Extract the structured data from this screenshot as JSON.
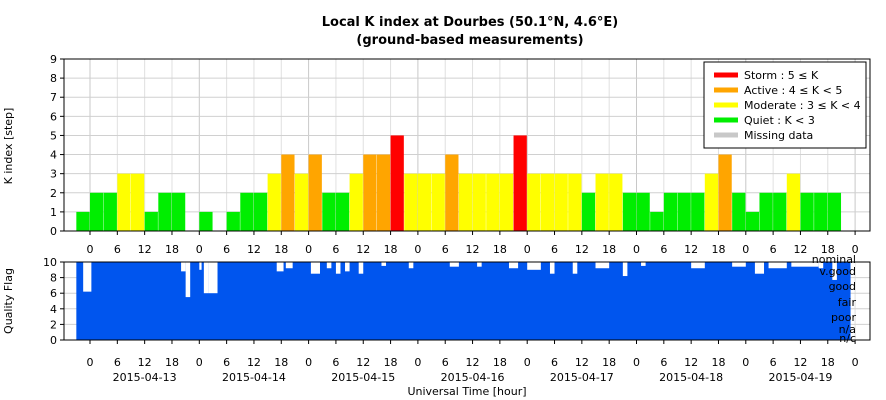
{
  "chart_data": [
    {
      "type": "bar",
      "title": "Local K index at Dourbes (50.1°N, 4.6°E)",
      "subtitle": "(ground-based measurements)",
      "ylabel": "K index [step]",
      "ylim": [
        0,
        9
      ],
      "yticks": [
        "0",
        "1",
        "2",
        "3",
        "4",
        "5",
        "6",
        "7",
        "8",
        "9"
      ],
      "bin_hours": 3,
      "start_hour_offset": -3,
      "values": [
        1,
        2,
        2,
        3,
        3,
        1,
        2,
        2,
        0,
        1,
        0,
        1,
        2,
        2,
        3,
        4,
        3,
        4,
        2,
        2,
        3,
        4,
        4,
        5,
        3,
        3,
        3,
        4,
        3,
        3,
        3,
        3,
        5,
        3,
        3,
        3,
        3,
        2,
        3,
        3,
        2,
        2,
        1,
        2,
        2,
        2,
        3,
        4,
        2,
        1,
        2,
        2,
        3,
        2,
        2,
        2
      ],
      "x_date_labels": [
        "2015-04-13",
        "2015-04-14",
        "2015-04-15",
        "2015-04-16",
        "2015-04-17",
        "2015-04-18",
        "2015-04-19"
      ],
      "x_hour_labels": [
        "0",
        "6",
        "12",
        "18"
      ],
      "final_hour_label": "0",
      "xlabel": "Universal Time [hour]",
      "legend_position": "top-right",
      "legend": [
        {
          "label": "Storm : 5 ≤ K",
          "color": "#ff0000"
        },
        {
          "label": "Active : 4 ≤ K < 5",
          "color": "#ffa500"
        },
        {
          "label": "Moderate : 3 ≤ K < 4",
          "color": "#ffff00"
        },
        {
          "label": "Quiet : K < 3",
          "color": "#00ee00"
        },
        {
          "label": "Missing data",
          "color": "#c8c8c8"
        }
      ],
      "grid": true
    },
    {
      "type": "bar",
      "ylabel": "Quality Flag",
      "ylim": [
        0,
        10
      ],
      "yticks": [
        "0",
        "2",
        "4",
        "6",
        "8",
        "10"
      ],
      "category_labels": [
        "nominal",
        "v.good",
        "good",
        "fair",
        "poor",
        "n/a",
        "n/c"
      ],
      "color": "#0055ee",
      "grid": true
    }
  ]
}
